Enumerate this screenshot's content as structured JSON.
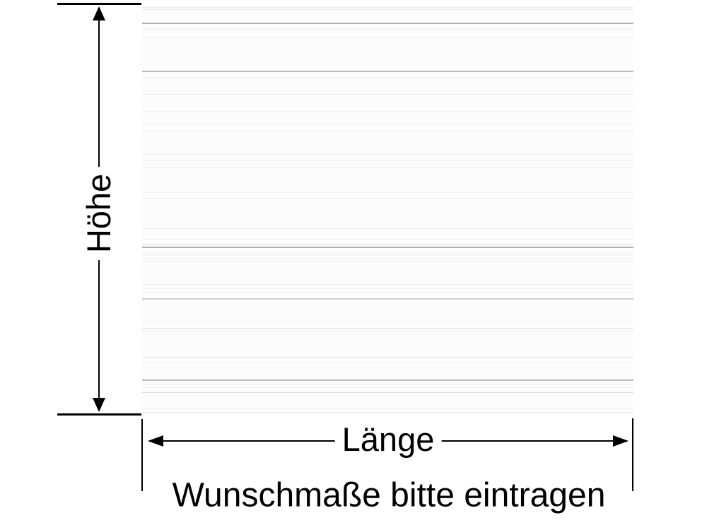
{
  "diagram": {
    "height_label": "Höhe",
    "length_label": "Länge",
    "caption": "Wunschmaße bitte eintragen",
    "colors": {
      "dimension_lines": "#000000",
      "background": "#ffffff",
      "board_base": "#fcfcfc",
      "grain_dark": "#b0b0b0"
    }
  }
}
